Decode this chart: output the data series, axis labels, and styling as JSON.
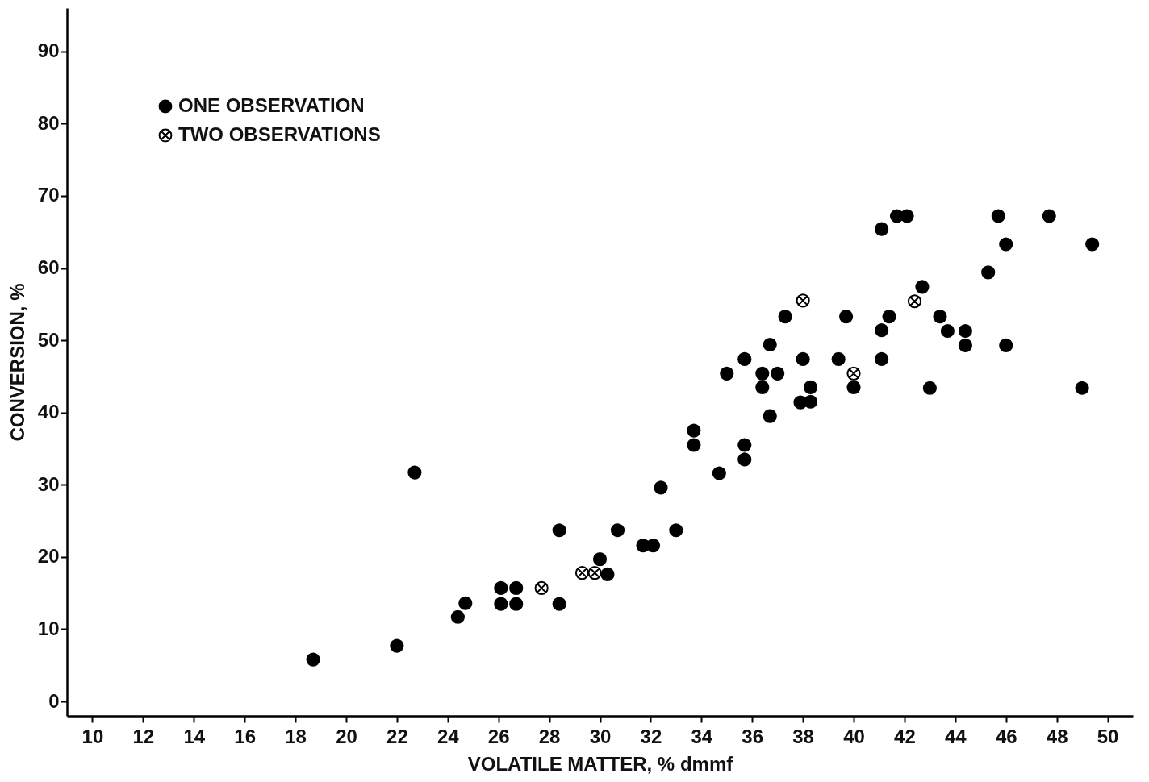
{
  "chart_data": {
    "type": "scatter",
    "xlabel": "VOLATILE MATTER, % dmmf",
    "ylabel": "CONVERSION, %",
    "xlim": [
      9,
      51
    ],
    "ylim": [
      -2,
      96
    ],
    "xticks": [
      10,
      12,
      14,
      16,
      18,
      20,
      22,
      24,
      26,
      28,
      30,
      32,
      34,
      36,
      38,
      40,
      42,
      44,
      46,
      48,
      50
    ],
    "yticks": [
      0,
      10,
      20,
      30,
      40,
      50,
      60,
      70,
      80,
      90
    ],
    "grid": false,
    "legend": "top left",
    "series": [
      {
        "name": "ONE OBSERVATION",
        "color": "#000000",
        "marker": "circle",
        "x": [
          18.7,
          22.0,
          22.7,
          24.4,
          24.7,
          26.1,
          26.1,
          26.7,
          26.7,
          28.4,
          28.4,
          30.0,
          30.3,
          30.7,
          31.7,
          32.1,
          32.4,
          33.0,
          33.7,
          33.7,
          34.7,
          35.0,
          35.7,
          35.7,
          35.7,
          36.4,
          36.4,
          36.7,
          36.7,
          37.0,
          37.3,
          38.0,
          37.9,
          38.3,
          38.3,
          39.4,
          39.7,
          40.0,
          41.1,
          41.1,
          41.1,
          41.4,
          41.7,
          42.1,
          42.7,
          43.0,
          43.4,
          43.7,
          44.4,
          44.4,
          45.3,
          45.7,
          46.0,
          46.0,
          47.7,
          49.0,
          49.4
        ],
        "values": [
          5.8,
          7.7,
          31.7,
          11.7,
          13.6,
          15.7,
          13.5,
          15.7,
          13.5,
          23.7,
          13.5,
          19.7,
          17.6,
          23.7,
          21.6,
          21.6,
          29.6,
          23.7,
          37.5,
          35.5,
          31.6,
          45.4,
          47.4,
          35.5,
          33.5,
          45.4,
          43.5,
          49.4,
          39.5,
          45.4,
          53.3,
          47.4,
          41.4,
          43.5,
          41.5,
          47.4,
          53.3,
          43.5,
          65.4,
          51.4,
          47.4,
          53.3,
          67.2,
          67.2,
          57.4,
          43.4,
          53.3,
          51.3,
          51.3,
          49.3,
          59.4,
          67.2,
          63.3,
          49.3,
          67.2,
          43.4,
          63.3
        ]
      },
      {
        "name": "TWO OBSERVATIONS",
        "color": "#000000",
        "marker": "cross",
        "x": [
          27.7,
          29.3,
          29.8,
          38.0,
          40.0,
          42.4
        ],
        "values": [
          15.7,
          17.8,
          17.8,
          55.5,
          45.4,
          55.4
        ]
      }
    ]
  }
}
